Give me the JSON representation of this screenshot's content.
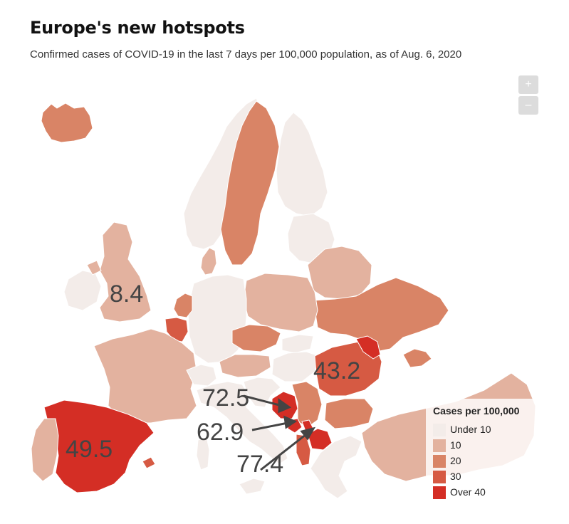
{
  "header": {
    "title": "Europe's new hotspots",
    "subtitle": "Confirmed cases of COVID-19 in the last 7 days per 100,000 population, as of Aug. 6, 2020"
  },
  "zoom": {
    "in_label": "+",
    "out_label": "–"
  },
  "colors": {
    "under10": "#f3ece9",
    "c10": "#e3b29f",
    "c20": "#d98466",
    "c30": "#d65a43",
    "over40": "#d42e25",
    "background": "#ffffff"
  },
  "annotations": {
    "uk": "8.4",
    "romania": "43.2",
    "spain": "49.5",
    "bosnia": "72.5",
    "montenegro": "62.9",
    "north_macedonia": "77.4"
  },
  "legend": {
    "title": "Cases per 100,000",
    "items": [
      {
        "label": "Under 10",
        "color": "#f3ece9"
      },
      {
        "label": "10",
        "color": "#e3b29f"
      },
      {
        "label": "20",
        "color": "#d98466"
      },
      {
        "label": "30",
        "color": "#d65a43"
      },
      {
        "label": "Over 40",
        "color": "#d42e25"
      }
    ]
  }
}
